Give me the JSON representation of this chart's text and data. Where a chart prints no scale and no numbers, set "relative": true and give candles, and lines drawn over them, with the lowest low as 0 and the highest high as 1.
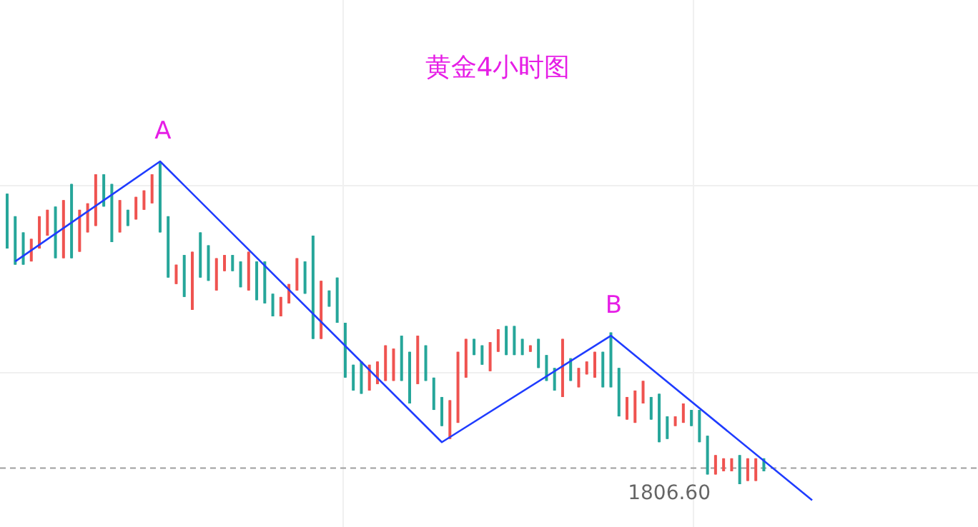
{
  "chart_data": {
    "type": "candlestick",
    "title": "黄金4小时图",
    "relative": true,
    "grid": true,
    "categories": [
      null,
      null,
      null,
      null,
      null,
      null,
      null,
      null,
      null,
      null,
      null,
      null,
      null,
      null,
      null,
      null,
      null,
      null,
      null,
      null,
      null,
      null,
      null,
      null,
      null,
      null,
      null,
      null,
      null,
      null,
      null,
      null,
      null,
      null,
      null,
      null,
      null,
      null,
      null,
      null,
      null,
      null,
      null,
      null,
      null,
      null,
      null,
      null,
      null,
      null,
      null,
      null,
      null,
      null,
      null,
      null,
      null,
      null,
      null,
      null,
      null,
      null,
      null,
      null,
      null,
      null,
      null,
      null,
      null,
      null,
      null,
      null,
      null,
      null,
      null,
      null,
      null,
      null,
      null,
      null,
      null,
      null,
      null,
      null,
      null,
      null,
      null,
      null,
      null,
      null,
      null,
      null,
      null,
      null,
      null,
      null,
      null,
      null,
      null,
      null,
      null
    ],
    "ohlc": [
      [
        0.73,
        0.9,
        0.73,
        0.9
      ],
      [
        0.68,
        0.83,
        0.68,
        0.83
      ],
      [
        0.68,
        0.78,
        0.68,
        0.78
      ],
      [
        0.76,
        0.76,
        0.69,
        0.69
      ],
      [
        0.83,
        0.83,
        0.73,
        0.73
      ],
      [
        0.85,
        0.85,
        0.77,
        0.77
      ],
      [
        0.7,
        0.86,
        0.7,
        0.86
      ],
      [
        0.88,
        0.88,
        0.7,
        0.7
      ],
      [
        0.7,
        0.93,
        0.7,
        0.93
      ],
      [
        0.85,
        0.85,
        0.72,
        0.72
      ],
      [
        0.87,
        0.87,
        0.78,
        0.78
      ],
      [
        0.96,
        0.96,
        0.8,
        0.8
      ],
      [
        0.86,
        0.96,
        0.86,
        0.96
      ],
      [
        0.75,
        0.93,
        0.75,
        0.93
      ],
      [
        0.88,
        0.88,
        0.78,
        0.78
      ],
      [
        0.8,
        0.85,
        0.8,
        0.85
      ],
      [
        0.89,
        0.89,
        0.82,
        0.82
      ],
      [
        0.91,
        0.91,
        0.85,
        0.85
      ],
      [
        0.96,
        0.96,
        0.87,
        0.87
      ],
      [
        0.78,
        1.0,
        0.78,
        1.0
      ],
      [
        0.64,
        0.83,
        0.64,
        0.83
      ],
      [
        0.68,
        0.68,
        0.62,
        0.62
      ],
      [
        0.58,
        0.71,
        0.58,
        0.71
      ],
      [
        0.72,
        0.72,
        0.54,
        0.54
      ],
      [
        0.64,
        0.78,
        0.64,
        0.78
      ],
      [
        0.63,
        0.74,
        0.63,
        0.74
      ],
      [
        0.7,
        0.7,
        0.6,
        0.6
      ],
      [
        0.71,
        0.71,
        0.66,
        0.66
      ],
      [
        0.66,
        0.71,
        0.66,
        0.71
      ],
      [
        0.61,
        0.69,
        0.61,
        0.69
      ],
      [
        0.72,
        0.72,
        0.6,
        0.6
      ],
      [
        0.57,
        0.69,
        0.57,
        0.69
      ],
      [
        0.56,
        0.69,
        0.56,
        0.69
      ],
      [
        0.52,
        0.59,
        0.52,
        0.59
      ],
      [
        0.58,
        0.58,
        0.52,
        0.52
      ],
      [
        0.62,
        0.62,
        0.56,
        0.56
      ],
      [
        0.7,
        0.7,
        0.6,
        0.6
      ],
      [
        0.59,
        0.69,
        0.59,
        0.69
      ],
      [
        0.45,
        0.77,
        0.45,
        0.77
      ],
      [
        0.63,
        0.63,
        0.45,
        0.45
      ],
      [
        0.55,
        0.6,
        0.55,
        0.6
      ],
      [
        0.5,
        0.64,
        0.5,
        0.64
      ],
      [
        0.33,
        0.5,
        0.33,
        0.5
      ],
      [
        0.29,
        0.37,
        0.29,
        0.37
      ],
      [
        0.28,
        0.38,
        0.28,
        0.38
      ],
      [
        0.37,
        0.37,
        0.29,
        0.29
      ],
      [
        0.38,
        0.38,
        0.31,
        0.31
      ],
      [
        0.43,
        0.43,
        0.32,
        0.32
      ],
      [
        0.42,
        0.42,
        0.32,
        0.32
      ],
      [
        0.32,
        0.46,
        0.32,
        0.46
      ],
      [
        0.25,
        0.41,
        0.25,
        0.41
      ],
      [
        0.46,
        0.46,
        0.31,
        0.31
      ],
      [
        0.32,
        0.43,
        0.32,
        0.43
      ],
      [
        0.23,
        0.33,
        0.23,
        0.33
      ],
      [
        0.18,
        0.27,
        0.18,
        0.27
      ],
      [
        0.26,
        0.26,
        0.14,
        0.14
      ],
      [
        0.41,
        0.41,
        0.19,
        0.19
      ],
      [
        0.45,
        0.45,
        0.33,
        0.33
      ],
      [
        0.4,
        0.45,
        0.4,
        0.45
      ],
      [
        0.37,
        0.43,
        0.37,
        0.43
      ],
      [
        0.44,
        0.44,
        0.35,
        0.35
      ],
      [
        0.48,
        0.48,
        0.41,
        0.41
      ],
      [
        0.4,
        0.49,
        0.4,
        0.49
      ],
      [
        0.4,
        0.49,
        0.4,
        0.49
      ],
      [
        0.4,
        0.45,
        0.4,
        0.45
      ],
      [
        0.43,
        0.43,
        0.41,
        0.41
      ],
      [
        0.36,
        0.45,
        0.36,
        0.45
      ],
      [
        0.32,
        0.4,
        0.32,
        0.4
      ],
      [
        0.29,
        0.36,
        0.29,
        0.36
      ],
      [
        0.45,
        0.45,
        0.27,
        0.27
      ],
      [
        0.32,
        0.39,
        0.32,
        0.39
      ],
      [
        0.36,
        0.36,
        0.3,
        0.3
      ],
      [
        0.38,
        0.38,
        0.34,
        0.34
      ],
      [
        0.41,
        0.41,
        0.33,
        0.33
      ],
      [
        0.3,
        0.41,
        0.3,
        0.41
      ],
      [
        0.3,
        0.47,
        0.3,
        0.47
      ],
      [
        0.21,
        0.36,
        0.21,
        0.36
      ],
      [
        0.27,
        0.27,
        0.2,
        0.2
      ],
      [
        0.29,
        0.29,
        0.19,
        0.19
      ],
      [
        0.32,
        0.32,
        0.25,
        0.25
      ],
      [
        0.2,
        0.27,
        0.2,
        0.27
      ],
      [
        0.13,
        0.28,
        0.13,
        0.28
      ],
      [
        0.14,
        0.21,
        0.14,
        0.21
      ],
      [
        0.21,
        0.21,
        0.18,
        0.18
      ],
      [
        0.25,
        0.25,
        0.19,
        0.19
      ],
      [
        0.18,
        0.23,
        0.18,
        0.23
      ],
      [
        0.13,
        0.23,
        0.13,
        0.23
      ],
      [
        0.03,
        0.15,
        0.03,
        0.15
      ],
      [
        0.09,
        0.09,
        0.03,
        0.03
      ],
      [
        0.08,
        0.08,
        0.04,
        0.04
      ],
      [
        0.08,
        0.08,
        0.04,
        0.04
      ],
      [
        0.0,
        0.09,
        0.0,
        0.09
      ],
      [
        0.08,
        0.08,
        0.01,
        0.01
      ],
      [
        0.08,
        0.08,
        0.01,
        0.01
      ],
      [
        0.04,
        0.08,
        0.04,
        0.08
      ],
      null,
      null,
      null,
      null,
      null,
      null
    ],
    "colors": [
      "#26a69a",
      "#26a69a",
      "#26a69a",
      "#ef5350",
      "#ef5350",
      "#ef5350",
      "#26a69a",
      "#ef5350",
      "#26a69a",
      "#ef5350",
      "#ef5350",
      "#ef5350",
      "#26a69a",
      "#26a69a",
      "#ef5350",
      "#26a69a",
      "#ef5350",
      "#ef5350",
      "#ef5350",
      "#26a69a",
      "#26a69a",
      "#ef5350",
      "#26a69a",
      "#ef5350",
      "#26a69a",
      "#26a69a",
      "#ef5350",
      "#ef5350",
      "#26a69a",
      "#26a69a",
      "#ef5350",
      "#26a69a",
      "#26a69a",
      "#26a69a",
      "#ef5350",
      "#ef5350",
      "#ef5350",
      "#26a69a",
      "#26a69a",
      "#ef5350",
      "#26a69a",
      "#26a69a",
      "#26a69a",
      "#26a69a",
      "#26a69a",
      "#ef5350",
      "#ef5350",
      "#ef5350",
      "#ef5350",
      "#26a69a",
      "#26a69a",
      "#ef5350",
      "#26a69a",
      "#26a69a",
      "#26a69a",
      "#ef5350",
      "#ef5350",
      "#ef5350",
      "#26a69a",
      "#26a69a",
      "#ef5350",
      "#ef5350",
      "#26a69a",
      "#26a69a",
      "#26a69a",
      "#ef5350",
      "#26a69a",
      "#26a69a",
      "#26a69a",
      "#ef5350",
      "#26a69a",
      "#ef5350",
      "#ef5350",
      "#ef5350",
      "#26a69a",
      "#26a69a",
      "#26a69a",
      "#ef5350",
      "#ef5350",
      "#ef5350",
      "#26a69a",
      "#26a69a",
      "#26a69a",
      "#ef5350",
      "#ef5350",
      "#26a69a",
      "#26a69a",
      "#26a69a",
      "#ef5350",
      "#ef5350",
      "#ef5350",
      "#26a69a",
      "#ef5350",
      "#ef5350",
      "#26a69a",
      null,
      null,
      null,
      null,
      null,
      null
    ],
    "series": [
      {
        "type": "line",
        "color": "#1f3cff",
        "values": [
          null,
          0.69,
          null,
          null,
          null,
          null,
          null,
          null,
          null,
          null,
          null,
          null,
          null,
          null,
          null,
          null,
          null,
          null,
          null,
          1.0,
          null,
          null,
          null,
          null,
          null,
          null,
          null,
          null,
          null,
          null,
          null,
          null,
          null,
          null,
          null,
          null,
          null,
          null,
          null,
          null,
          null,
          null,
          null,
          null,
          null,
          null,
          null,
          null,
          null,
          null,
          null,
          null,
          null,
          null,
          0.13,
          null,
          null,
          null,
          null,
          null,
          null,
          null,
          null,
          null,
          null,
          null,
          null,
          null,
          null,
          null,
          null,
          null,
          null,
          null,
          null,
          0.46,
          null,
          null,
          null,
          null,
          null,
          null,
          null,
          null,
          null,
          null,
          null,
          null,
          null,
          null,
          null,
          null,
          null,
          null,
          null,
          null,
          null,
          null,
          null,
          null,
          -0.05
        ]
      }
    ],
    "ref_lines": [
      {
        "axis": "y",
        "value": 0.05,
        "color": "#9e9e9e",
        "line_style": "dashed"
      }
    ],
    "annotations": [
      {
        "text": "A",
        "y": 1.0
      },
      {
        "text": "B",
        "y": 0.46
      },
      "1806.60"
    ]
  }
}
